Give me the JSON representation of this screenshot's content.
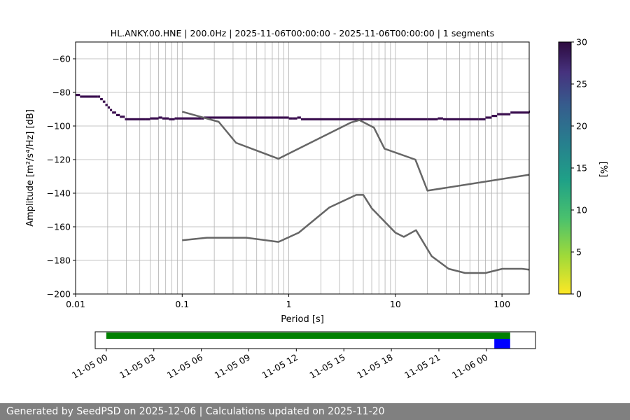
{
  "title": "HL.ANKY.00.HNE | 200.0Hz | 2025-11-06T00:00:00 - 2025-11-06T00:00:00 | 1 segments",
  "footer": "Generated by SeedPSD on 2025-12-06 | Calculations updated on 2025-11-20",
  "colors": {
    "noise_models": "#666666",
    "psd_mode": "#3b0f4f",
    "grid": "#b0b0b0",
    "coverage_data": "#008000",
    "coverage_current": "#0000ff"
  },
  "chart_data": [
    {
      "type": "heatmap",
      "title": "HL.ANKY.00.HNE | 200.0Hz | 2025-11-06T00:00:00 - 2025-11-06T00:00:00 | 1 segments",
      "xlabel": "Period [s]",
      "ylabel": "Amplitude [m²/s⁴/Hz] [dB]",
      "x_scale": "log",
      "xlim": [
        0.01,
        180
      ],
      "ylim": [
        -200,
        -50
      ],
      "grid": true,
      "x_ticks": [
        {
          "value": 0.01,
          "label": "0.01"
        },
        {
          "value": 0.1,
          "label": "0.1"
        },
        {
          "value": 1,
          "label": "1"
        },
        {
          "value": 10,
          "label": "10"
        },
        {
          "value": 100,
          "label": "100"
        }
      ],
      "y_ticks": [
        {
          "value": -60,
          "label": "−60"
        },
        {
          "value": -80,
          "label": "−80"
        },
        {
          "value": -100,
          "label": "−100"
        },
        {
          "value": -120,
          "label": "−120"
        },
        {
          "value": -140,
          "label": "−140"
        },
        {
          "value": -160,
          "label": "−160"
        },
        {
          "value": -180,
          "label": "−180"
        },
        {
          "value": -200,
          "label": "−200"
        }
      ],
      "psd_mode": [
        [
          0.01,
          -81.5
        ],
        [
          0.011,
          -82.5
        ],
        [
          0.016,
          -82.5
        ],
        [
          0.017,
          -84
        ],
        [
          0.018,
          -85.5
        ],
        [
          0.019,
          -87.5
        ],
        [
          0.02,
          -89
        ],
        [
          0.021,
          -90.5
        ],
        [
          0.022,
          -92
        ],
        [
          0.024,
          -93.5
        ],
        [
          0.026,
          -94.5
        ],
        [
          0.029,
          -96
        ],
        [
          0.045,
          -96
        ],
        [
          0.05,
          -95.5
        ],
        [
          0.06,
          -95
        ],
        [
          0.065,
          -95.5
        ],
        [
          0.075,
          -96
        ],
        [
          0.085,
          -95.5
        ],
        [
          0.15,
          -95.5
        ],
        [
          0.16,
          -95
        ],
        [
          0.9,
          -95
        ],
        [
          1.0,
          -95.5
        ],
        [
          1.1,
          -95.5
        ],
        [
          1.2,
          -95
        ],
        [
          1.3,
          -96
        ],
        [
          20,
          -96
        ],
        [
          25,
          -95.5
        ],
        [
          28,
          -96
        ],
        [
          60,
          -96
        ],
        [
          70,
          -95
        ],
        [
          80,
          -94
        ],
        [
          90,
          -93
        ],
        [
          120,
          -92
        ],
        [
          180,
          -91.5
        ]
      ],
      "series": [
        {
          "values": [
            [
              0.1,
              -91.5
            ],
            [
              0.22,
              -97.5
            ],
            [
              0.32,
              -110
            ],
            [
              0.8,
              -119.5
            ],
            [
              3.8,
              -98
            ],
            [
              4.6,
              -96.5
            ],
            [
              6.3,
              -101
            ],
            [
              7.9,
              -113.5
            ],
            [
              15.4,
              -120
            ],
            [
              20,
              -138.5
            ],
            [
              180,
              -129
            ]
          ]
        },
        {
          "values": [
            [
              0.1,
              -168
            ],
            [
              0.17,
              -166.5
            ],
            [
              0.4,
              -166.5
            ],
            [
              0.8,
              -169
            ],
            [
              1.24,
              -163.5
            ],
            [
              2.4,
              -148.5
            ],
            [
              4.3,
              -141
            ],
            [
              5.0,
              -141
            ],
            [
              6.0,
              -149
            ],
            [
              10,
              -163.5
            ],
            [
              12,
              -166
            ],
            [
              15.6,
              -162
            ],
            [
              21.9,
              -177.5
            ],
            [
              31.6,
              -185
            ],
            [
              45,
              -187.5
            ],
            [
              70,
              -187.5
            ],
            [
              101,
              -185
            ],
            [
              154,
              -185
            ],
            [
              180,
              -185.5
            ]
          ]
        }
      ]
    },
    {
      "type": "colorbar",
      "label": "[%]",
      "range": [
        0,
        30
      ],
      "ticks": [
        {
          "value": 0,
          "label": "0"
        },
        {
          "value": 5,
          "label": "5"
        },
        {
          "value": 10,
          "label": "10"
        },
        {
          "value": 15,
          "label": "15"
        },
        {
          "value": 20,
          "label": "20"
        },
        {
          "value": 25,
          "label": "25"
        },
        {
          "value": 30,
          "label": "30"
        }
      ]
    },
    {
      "type": "timeline",
      "range_hours": [
        -0.7,
        27.1
      ],
      "tick_labels": [
        {
          "hours": 0,
          "label": "11-05 00"
        },
        {
          "hours": 3,
          "label": "11-05 03"
        },
        {
          "hours": 6,
          "label": "11-05 06"
        },
        {
          "hours": 9,
          "label": "11-05 09"
        },
        {
          "hours": 12,
          "label": "11-05 12"
        },
        {
          "hours": 15,
          "label": "11-05 15"
        },
        {
          "hours": 18,
          "label": "11-05 18"
        },
        {
          "hours": 21,
          "label": "11-05 21"
        },
        {
          "hours": 24,
          "label": "11-06 00"
        }
      ],
      "data_span_hours": [
        0,
        25.5
      ],
      "current_span_hours": [
        24.5,
        25.5
      ]
    }
  ]
}
